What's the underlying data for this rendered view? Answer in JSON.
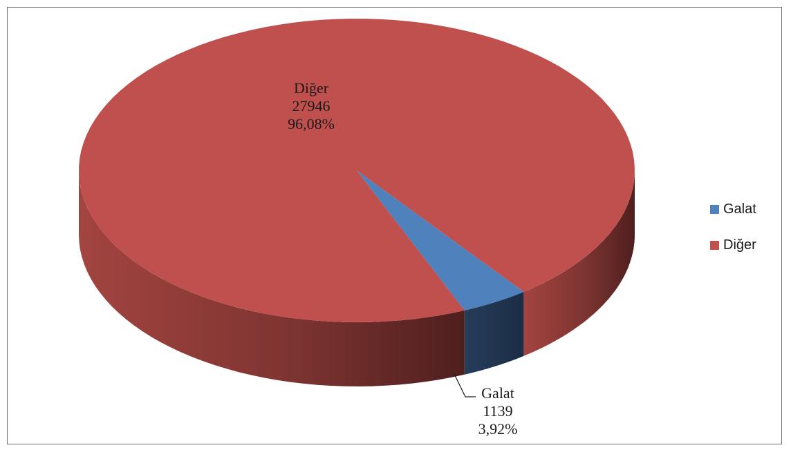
{
  "chart_data": {
    "type": "pie",
    "style": "3d",
    "slices": [
      {
        "name": "Galat",
        "value": 1139,
        "percent": "3,92%",
        "color": "#4f81bd"
      },
      {
        "name": "Diğer",
        "value": 27946,
        "percent": "96,08%",
        "color": "#c0504d"
      }
    ],
    "legend": {
      "position": "right",
      "items": [
        {
          "label": "Galat",
          "color": "#4f81bd"
        },
        {
          "label": "Diğer",
          "color": "#c0504d"
        }
      ]
    },
    "labels": {
      "diger": {
        "name": "Diğer",
        "value": "27946",
        "percent": "96,08%"
      },
      "galat": {
        "name": "Galat",
        "value": "1139",
        "percent": "3,92%"
      }
    }
  }
}
